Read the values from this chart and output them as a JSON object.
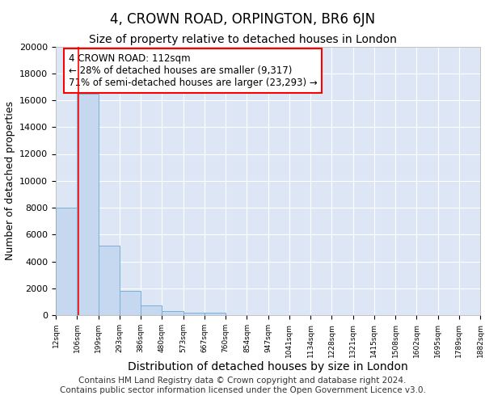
{
  "title": "4, CROWN ROAD, ORPINGTON, BR6 6JN",
  "subtitle": "Size of property relative to detached houses in London",
  "xlabel": "Distribution of detached houses by size in London",
  "ylabel": "Number of detached properties",
  "bar_values": [
    8000,
    16500,
    5200,
    1800,
    700,
    300,
    200,
    200,
    0,
    0,
    0,
    0,
    0,
    0,
    0,
    0,
    0,
    0,
    0,
    0
  ],
  "bin_edges": [
    12,
    106,
    199,
    293,
    386,
    480,
    573,
    667,
    760,
    854,
    947,
    1041,
    1134,
    1228,
    1321,
    1415,
    1508,
    1602,
    1695,
    1789,
    1882
  ],
  "tick_labels": [
    "12sqm",
    "106sqm",
    "199sqm",
    "293sqm",
    "386sqm",
    "480sqm",
    "573sqm",
    "667sqm",
    "760sqm",
    "854sqm",
    "947sqm",
    "1041sqm",
    "1134sqm",
    "1228sqm",
    "1321sqm",
    "1415sqm",
    "1508sqm",
    "1602sqm",
    "1695sqm",
    "1789sqm",
    "1882sqm"
  ],
  "bar_color": "#c5d8f0",
  "bar_edge_color": "#7bafd4",
  "red_line_x": 112,
  "annotation_line1": "4 CROWN ROAD: 112sqm",
  "annotation_line2": "← 28% of detached houses are smaller (9,317)",
  "annotation_line3": "71% of semi-detached houses are larger (23,293) →",
  "background_color": "#dce6f5",
  "ylim": [
    0,
    20000
  ],
  "footer_line1": "Contains HM Land Registry data © Crown copyright and database right 2024.",
  "footer_line2": "Contains public sector information licensed under the Open Government Licence v3.0.",
  "title_fontsize": 12,
  "subtitle_fontsize": 10,
  "footer_fontsize": 7.5,
  "ylabel_fontsize": 9,
  "xlabel_fontsize": 10
}
